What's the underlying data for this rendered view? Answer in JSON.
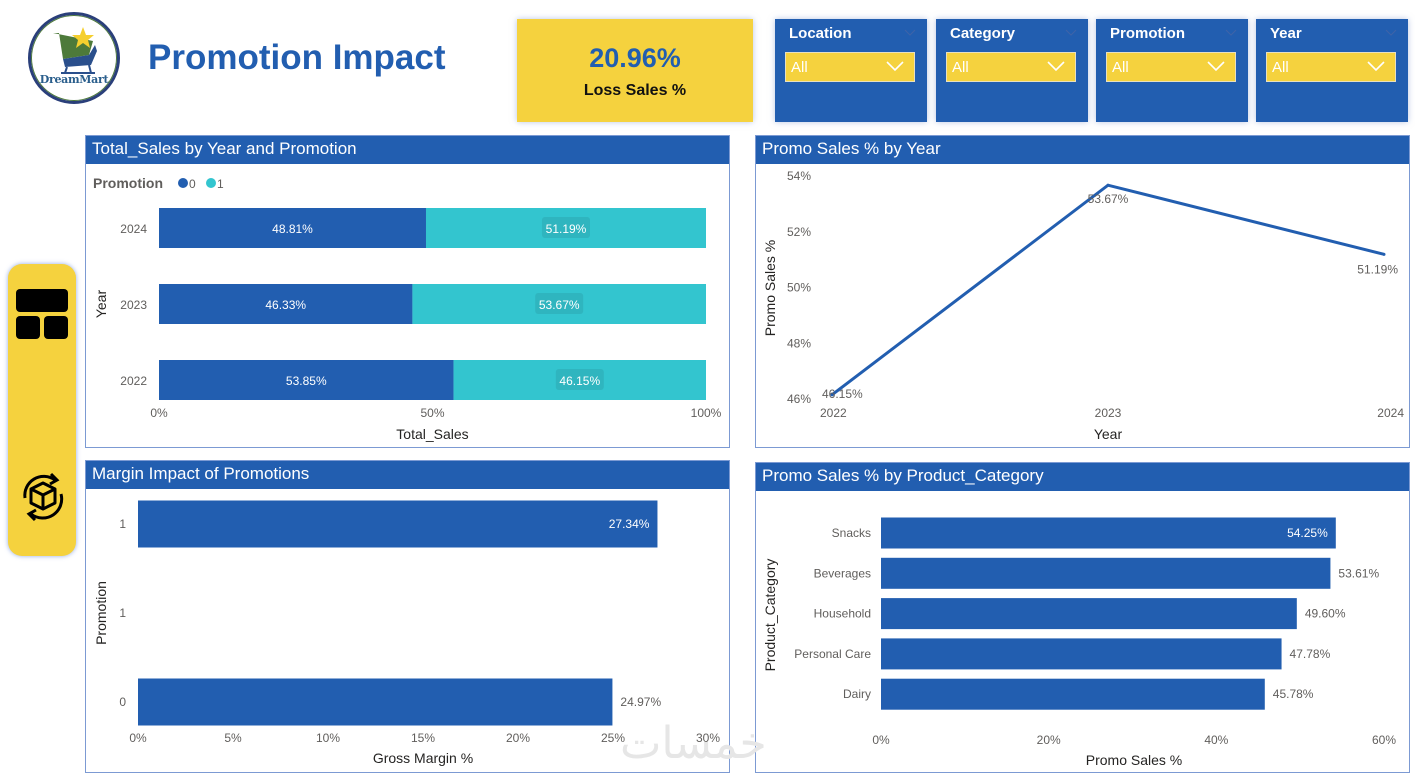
{
  "header": {
    "logo_text": "DreamMart",
    "title": "Promotion Impact"
  },
  "kpi": {
    "value": "20.96%",
    "label": "Loss Sales %"
  },
  "slicers": [
    {
      "title": "Location",
      "value": "All"
    },
    {
      "title": "Category",
      "value": "All"
    },
    {
      "title": "Promotion",
      "value": "All"
    },
    {
      "title": "Year",
      "value": "All"
    }
  ],
  "nav": {
    "items": [
      {
        "icon": "dashboard-layout-icon"
      },
      {
        "icon": "product-cycle-icon"
      }
    ]
  },
  "watermark": "خمسات",
  "colors": {
    "primary": "#225eb0",
    "accent_yellow": "#f5d23e",
    "teal": "#33c5cf"
  },
  "chart_data": [
    {
      "id": "total-sales-by-year",
      "type": "bar",
      "stacked": "100%",
      "orientation": "horizontal",
      "title": "Total_Sales by Year and Promotion",
      "xlabel": "Total_Sales",
      "ylabel": "Year",
      "legend": {
        "title": "Promotion",
        "position": "top-left"
      },
      "categories": [
        "2024",
        "2023",
        "2022"
      ],
      "series": [
        {
          "name": "0",
          "color": "#225eb0",
          "values": [
            48.81,
            46.33,
            53.85
          ],
          "labels": [
            "48.81%",
            "46.33%",
            "53.85%"
          ]
        },
        {
          "name": "1",
          "color": "#33c5cf",
          "values": [
            51.19,
            53.67,
            46.15
          ],
          "labels": [
            "51.19%",
            "53.67%",
            "46.15%"
          ]
        }
      ],
      "xticks": [
        "0%",
        "50%",
        "100%"
      ],
      "xlim": [
        0,
        100
      ]
    },
    {
      "id": "promo-sales-by-year",
      "type": "line",
      "title": "Promo Sales % by Year",
      "xlabel": "Year",
      "ylabel": "Promo Sales %",
      "x": [
        "2022",
        "2023",
        "2024"
      ],
      "series": [
        {
          "name": "Promo Sales %",
          "color": "#225eb0",
          "values": [
            46.15,
            53.67,
            51.19
          ],
          "labels": [
            "46.15%",
            "53.67%",
            "51.19%"
          ]
        }
      ],
      "yticks": [
        "46%",
        "48%",
        "50%",
        "52%",
        "54%"
      ],
      "ylim": [
        46,
        54
      ]
    },
    {
      "id": "margin-impact",
      "type": "bar",
      "orientation": "horizontal",
      "title": "Margin Impact of Promotions",
      "xlabel": "Gross Margin %",
      "ylabel": "Promotion",
      "categories": [
        "1",
        "1",
        "0"
      ],
      "values": [
        27.34,
        null,
        24.97
      ],
      "labels": [
        "27.34%",
        "",
        "24.97%"
      ],
      "xticks": [
        "0%",
        "5%",
        "10%",
        "15%",
        "20%",
        "25%",
        "30%"
      ],
      "xlim": [
        0,
        30
      ]
    },
    {
      "id": "promo-sales-by-category",
      "type": "bar",
      "orientation": "horizontal",
      "title": "Promo Sales % by Product_Category",
      "xlabel": "Promo Sales %",
      "ylabel": "Product_Category",
      "categories": [
        "Snacks",
        "Beverages",
        "Household",
        "Personal Care",
        "Dairy"
      ],
      "values": [
        54.25,
        53.61,
        49.6,
        47.78,
        45.78
      ],
      "labels": [
        "54.25%",
        "53.61%",
        "49.60%",
        "47.78%",
        "45.78%"
      ],
      "xticks": [
        "0%",
        "20%",
        "40%",
        "60%"
      ],
      "xlim": [
        0,
        60
      ]
    }
  ]
}
